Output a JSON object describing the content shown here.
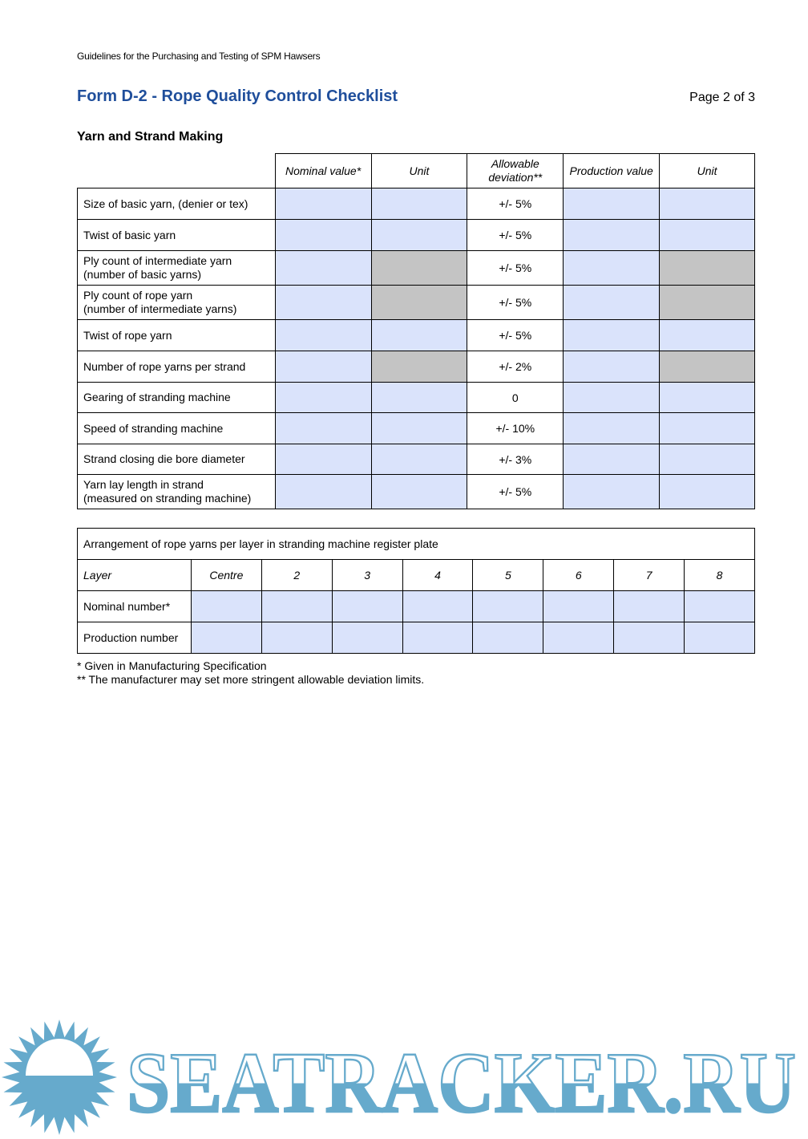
{
  "header": {
    "running_title": "Guidelines for the Purchasing and Testing of SPM Hawsers",
    "form_title": "Form D-2 - Rope Quality Control Checklist",
    "page": "Page 2 of 3"
  },
  "section": "Yarn and Strand Making",
  "table1": {
    "columns": [
      "Nominal value*",
      "Unit",
      "Allowable deviation**",
      "Production value",
      "Unit"
    ],
    "rows": [
      {
        "label": "Size of basic yarn, (denier or tex)",
        "deviation": "+/- 5%",
        "unit_na": false
      },
      {
        "label": "Twist of basic yarn",
        "deviation": "+/- 5%",
        "unit_na": false
      },
      {
        "label": "Ply count of intermediate yarn\n(number of basic yarns)",
        "deviation": "+/- 5%",
        "unit_na": true
      },
      {
        "label": "Ply count of rope yarn\n(number of intermediate yarns)",
        "deviation": "+/- 5%",
        "unit_na": true
      },
      {
        "label": "Twist of rope yarn",
        "deviation": "+/- 5%",
        "unit_na": false
      },
      {
        "label": "Number of rope yarns per strand",
        "deviation": "+/- 2%",
        "unit_na": true
      },
      {
        "label": "Gearing of stranding machine",
        "deviation": "0",
        "unit_na": false
      },
      {
        "label": "Speed of stranding machine",
        "deviation": "+/- 10%",
        "unit_na": false
      },
      {
        "label": "Strand closing die bore diameter",
        "deviation": "+/- 3%",
        "unit_na": false
      },
      {
        "label": "Yarn lay length in strand\n(measured on stranding machine)",
        "deviation": "+/- 5%",
        "unit_na": false
      }
    ]
  },
  "table2": {
    "title": "Arrangement of rope yarns per layer in stranding machine register plate",
    "layer_label": "Layer",
    "layers": [
      "Centre",
      "2",
      "3",
      "4",
      "5",
      "6",
      "7",
      "8"
    ],
    "rows": [
      "Nominal number*",
      "Production number"
    ]
  },
  "notes": [
    "* Given in Manufacturing Specification",
    "** The manufacturer may set more stringent allowable deviation limits."
  ],
  "watermark": {
    "text": "SEATRACKER.RU",
    "color": "#66aacc"
  },
  "colors": {
    "title": "#1f4e9b",
    "input_cell": "#dae3fb",
    "na_cell": "#c4c4c4"
  }
}
